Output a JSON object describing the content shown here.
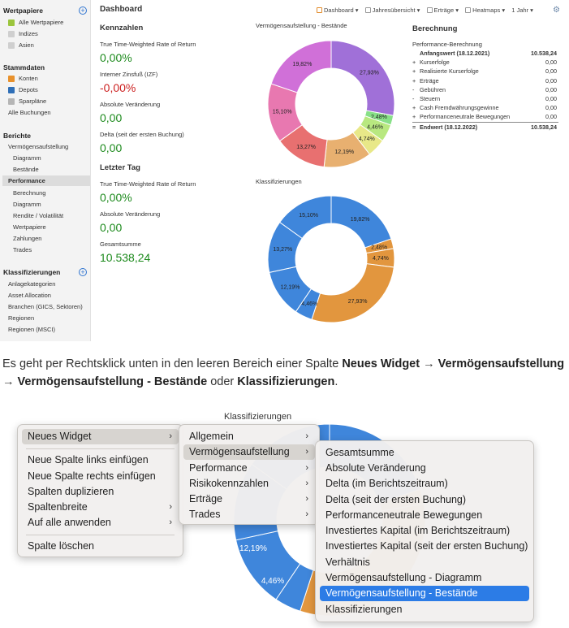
{
  "sidebar": {
    "wertpapiere": {
      "title": "Wertpapiere",
      "items": [
        "Alle Wertpapiere",
        "Indizes",
        "Asien"
      ]
    },
    "stammdaten": {
      "title": "Stammdaten",
      "items": [
        "Konten",
        "Depots",
        "Sparpläne",
        "Alle Buchungen"
      ]
    },
    "berichte": {
      "title": "Berichte",
      "items": [
        "Vermögensaufstellung",
        "Diagramm",
        "Bestände",
        "Performance",
        "Berechnung",
        "Diagramm",
        "Rendite / Volatilität",
        "Wertpapiere",
        "Zahlungen",
        "Trades"
      ]
    },
    "klassifizierungen": {
      "title": "Klassifizierungen",
      "items": [
        "Anlagekategorien",
        "Asset Allocation",
        "Branchen (GICS, Sektoren)",
        "Regionen",
        "Regionen (MSCI)"
      ]
    },
    "plus": "+"
  },
  "header": {
    "title": "Dashboard",
    "toolbar": [
      "Dashboard ▾",
      "Jahresübersicht ▾",
      "Erträge ▾",
      "Heatmaps ▾",
      "1 Jahr ▾"
    ],
    "gear": "⚙"
  },
  "kennzahlen": {
    "title": "Kennzahlen",
    "items": [
      {
        "label": "True Time-Weighted Rate of Return",
        "value": "0,00%"
      },
      {
        "label": "Interner Zinsfuß (IZF)",
        "value": "-0,00%"
      },
      {
        "label": "Absolute Veränderung",
        "value": "0,00"
      },
      {
        "label": "Delta (seit der ersten Buchung)",
        "value": "0,00"
      }
    ]
  },
  "letzter_tag": {
    "title": "Letzter Tag",
    "items": [
      {
        "label": "True Time-Weighted Rate of Return",
        "value": "0,00%"
      },
      {
        "label": "Absolute Veränderung",
        "value": "0,00"
      },
      {
        "label": "Gesamtsumme",
        "value": "10.538,24"
      }
    ]
  },
  "chart_titles": {
    "bestaende": "Vermögensaufstellung - Bestände",
    "klassifizierungen": "Klassifizierungen"
  },
  "chart_data": [
    {
      "type": "pie",
      "title": "Vermögensaufstellung - Bestände",
      "values": [
        27.93,
        2.48,
        4.46,
        4.74,
        12.19,
        13.27,
        15.1,
        19.82
      ],
      "labels": [
        "27,93%",
        "2,48%",
        "4,46%",
        "4,74%",
        "12,19%",
        "13,27%",
        "15,10%",
        "19,82%"
      ],
      "colors": [
        "#a070d8",
        "#88e088",
        "#b8e880",
        "#e8e888",
        "#e8b070",
        "#e87070",
        "#e878b0",
        "#d070d8"
      ]
    },
    {
      "type": "pie",
      "title": "Klassifizierungen",
      "values": [
        19.82,
        2.48,
        4.74,
        27.93,
        4.46,
        12.19,
        13.27,
        15.1
      ],
      "labels": [
        "19,82%",
        "2,48%",
        "4,74%",
        "27,93%",
        "4,46%",
        "12,19%",
        "13,27%",
        "15,10%"
      ],
      "colors": [
        "#3f86db",
        "#e2963e",
        "#e2963e",
        "#e2963e",
        "#3f86db",
        "#3f86db",
        "#3f86db",
        "#3f86db"
      ]
    }
  ],
  "berechnung": {
    "title": "Berechnung",
    "subtitle": "Performance-Berechnung",
    "rows": [
      {
        "sym": "",
        "label": "Anfangswert (18.12.2021)",
        "value": "10.538,24",
        "bold": true
      },
      {
        "sym": "+",
        "label": "Kurserfolge",
        "value": "0,00"
      },
      {
        "sym": "+",
        "label": "Realisierte Kurserfolge",
        "value": "0,00"
      },
      {
        "sym": "+",
        "label": "Erträge",
        "value": "0,00"
      },
      {
        "sym": "-",
        "label": "Gebühren",
        "value": "0,00"
      },
      {
        "sym": "-",
        "label": "Steuern",
        "value": "0,00"
      },
      {
        "sym": "+",
        "label": "Cash Fremdwährungsgewinne",
        "value": "0,00"
      },
      {
        "sym": "+",
        "label": "Performanceneutrale Bewegungen",
        "value": "0,00"
      },
      {
        "sym": "=",
        "label": "Endwert (18.12.2022)",
        "value": "10.538,24",
        "bold": true
      }
    ]
  },
  "caption": {
    "prefix": "Es geht per Rechtsklick unten in den leeren Bereich einer Spalte ",
    "b1": "Neues Widget",
    "a1": " → ",
    "b2": "Vermögensaufstellung",
    "a2": " → ",
    "b3": "Vermögensaufstellung - Bestände",
    "mid": " oder ",
    "b4": "Klassifizierungen",
    "end": "."
  },
  "context": {
    "title": "Klassifizierungen",
    "chart_labels": [
      "12,19%",
      "4,46%"
    ],
    "menu1": [
      "Neues Widget",
      "Neue Spalte links einfügen",
      "Neue Spalte rechts einfügen",
      "Spalten duplizieren",
      "Spaltenbreite",
      "Auf alle anwenden",
      "Spalte löschen"
    ],
    "menu2": [
      "Allgemein",
      "Vermögensaufstellung",
      "Performance",
      "Risikokennzahlen",
      "Erträge",
      "Trades"
    ],
    "menu3": [
      "Gesamtsumme",
      "Absolute Veränderung",
      "Delta (im Berichtszeitraum)",
      "Delta (seit der ersten Buchung)",
      "Performanceneutrale Bewegungen",
      "Investiertes Kapital (im Berichtszeitraum)",
      "Investiertes Kapital (seit der ersten Buchung)",
      "Verhältnis",
      "Vermögensaufstellung - Diagramm",
      "Vermögensaufstellung - Bestände",
      "Klassifizierungen"
    ],
    "arrow": "›"
  }
}
